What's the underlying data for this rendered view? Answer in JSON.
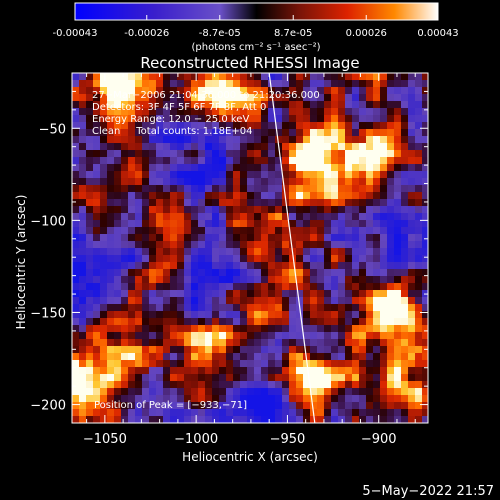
{
  "colorbar": {
    "tick_labels": [
      "-0.00043",
      "-0.00026",
      "-8.7e-05",
      "8.7e-05",
      "0.00026",
      "0.00043"
    ],
    "tick_values": [
      -0.00043,
      -0.00026,
      -8.7e-05,
      8.7e-05,
      0.00026,
      0.00043
    ],
    "range": [
      -0.00043,
      0.00043
    ],
    "units_label": "(photons cm⁻² s⁻¹ asec⁻²)",
    "colors": [
      "#0000ff",
      "#3300cc",
      "#4a2a9a",
      "#6b4cc0",
      "#000000",
      "#7a1f0a",
      "#cc2200",
      "#ff6600",
      "#ffcc33",
      "#ffffff"
    ]
  },
  "chart_data": {
    "type": "heatmap",
    "title": "Reconstructed RHESSI Image",
    "xlabel": "Heliocentric X (arcsec)",
    "ylabel": "Heliocentric Y (arcsec)",
    "xlim": [
      -1068,
      -873
    ],
    "ylim": [
      -210,
      -20
    ],
    "x_ticks": [
      -1050,
      -1000,
      -950,
      -900
    ],
    "x_tick_labels": [
      "−1050",
      "−1000",
      "−950",
      "−900"
    ],
    "y_ticks": [
      -50,
      -100,
      -150,
      -200
    ],
    "y_tick_labels": [
      "−50",
      "−100",
      "−150",
      "−200"
    ],
    "annotations": [
      "27−Mar−2006 21:04:36.000 to 21:20:36.000",
      "Detectors: 3F 4F 5F 6F 7F 8F, Att 0",
      "Energy Range: 12.0 − 25.0 keV",
      "Clean     Total counts: 1.18E+04"
    ],
    "peak_label": "Position of Peak = [−933,−71]",
    "peak_position": [
      -933,
      -71
    ],
    "limb_line": [
      [
        -960,
        -20
      ],
      [
        -935,
        -210
      ]
    ],
    "bright_sources": [
      [
        -1045,
        -25,
        1.0
      ],
      [
        -985,
        -28,
        0.9
      ],
      [
        -935,
        -72,
        1.0
      ],
      [
        -905,
        -60,
        0.7
      ],
      [
        -1015,
        -125,
        0.8
      ],
      [
        -1040,
        -160,
        0.7
      ],
      [
        -960,
        -115,
        0.6
      ],
      [
        -895,
        -150,
        0.9
      ],
      [
        -935,
        -185,
        0.9
      ],
      [
        -1060,
        -190,
        0.9
      ],
      [
        -990,
        -165,
        0.6
      ],
      [
        -885,
        -185,
        0.6
      ],
      [
        -1030,
        -70,
        0.5
      ],
      [
        -960,
        -150,
        0.5
      ]
    ],
    "dark_regions": [
      [
        -1000,
        -60
      ],
      [
        -1000,
        -130
      ],
      [
        -960,
        -200
      ],
      [
        -880,
        -110
      ],
      [
        -1050,
        -130
      ]
    ]
  },
  "timestamp": "5−May−2022 21:57"
}
